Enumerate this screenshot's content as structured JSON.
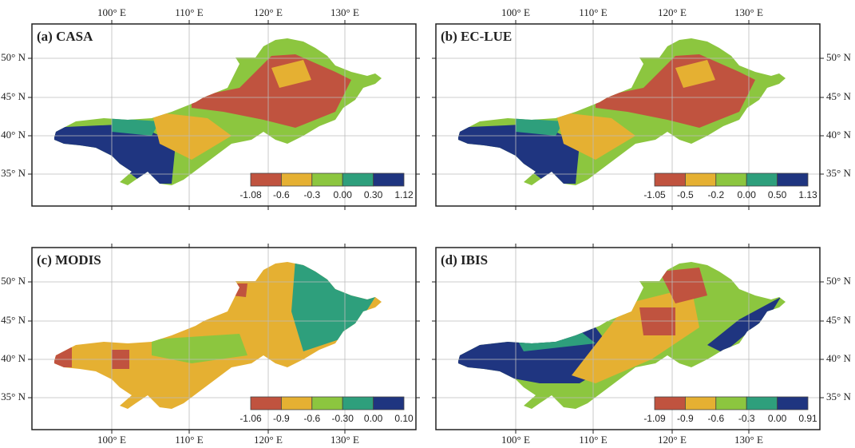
{
  "panels": [
    {
      "title": "(a) CASA",
      "colorbar_labels": [
        "-1.08",
        "-0.6",
        "-0.3",
        "0.00",
        "0.30",
        "1.12"
      ]
    },
    {
      "title": "(b) EC-LUE",
      "colorbar_labels": [
        "-1.05",
        "-0.5",
        "-0.2",
        "0.00",
        "0.50",
        "1.13"
      ]
    },
    {
      "title": "(c) MODIS",
      "colorbar_labels": [
        "-1.06",
        "-0.9",
        "-0.6",
        "-0.30",
        "0.00",
        "0.10"
      ]
    },
    {
      "title": "(d) IBIS",
      "colorbar_labels": [
        "-1.09",
        "-0.9",
        "-0.6",
        "-0.3",
        "0.00",
        "0.91"
      ]
    }
  ],
  "x_ticks": [
    "100° E",
    "110° E",
    "120° E",
    "130° E"
  ],
  "y_ticks": [
    "50° N",
    "45° N",
    "40° N",
    "35° N"
  ],
  "colorbar_colors": [
    "#c0533f",
    "#e5b032",
    "#8cc63f",
    "#2e9f7c",
    "#1f3580"
  ]
}
